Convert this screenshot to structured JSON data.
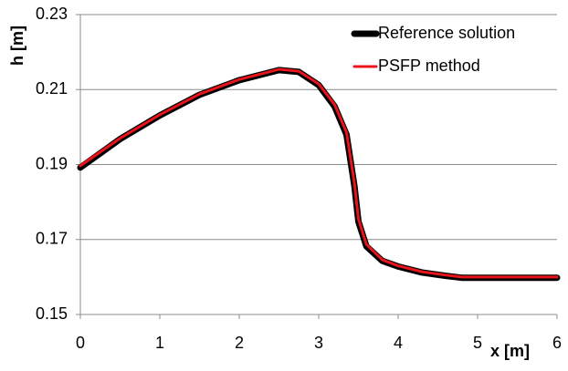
{
  "chart_data": {
    "type": "line",
    "x_label": "x [m]",
    "y_label": "h [m]",
    "xlim": [
      0,
      6
    ],
    "ylim": [
      0.15,
      0.23
    ],
    "xticks": [
      0,
      1,
      2,
      3,
      4,
      5,
      6
    ],
    "yticks": [
      0.15,
      0.17,
      0.19,
      0.21,
      0.23
    ],
    "grid": true,
    "legend": "upper right",
    "x": [
      0,
      0.5,
      1,
      1.5,
      2,
      2.5,
      2.75,
      3,
      3.2,
      3.35,
      3.45,
      3.5,
      3.6,
      3.8,
      4,
      4.3,
      4.6,
      4.8,
      6
    ],
    "series": [
      {
        "name": "Reference solution",
        "color": "#000000",
        "width": 7,
        "values": [
          0.1892,
          0.1968,
          0.2031,
          0.2086,
          0.2125,
          0.2152,
          0.2147,
          0.2112,
          0.2055,
          0.198,
          0.1842,
          0.1748,
          0.1682,
          0.1643,
          0.1628,
          0.1612,
          0.1603,
          0.1598,
          0.1598
        ]
      },
      {
        "name": "PSFP method",
        "color": "#e8141b",
        "width": 3,
        "values": [
          0.1897,
          0.197,
          0.2033,
          0.2088,
          0.2127,
          0.2154,
          0.2149,
          0.2115,
          0.206,
          0.1986,
          0.185,
          0.1755,
          0.1687,
          0.1646,
          0.163,
          0.1614,
          0.1605,
          0.16,
          0.16
        ]
      }
    ]
  }
}
